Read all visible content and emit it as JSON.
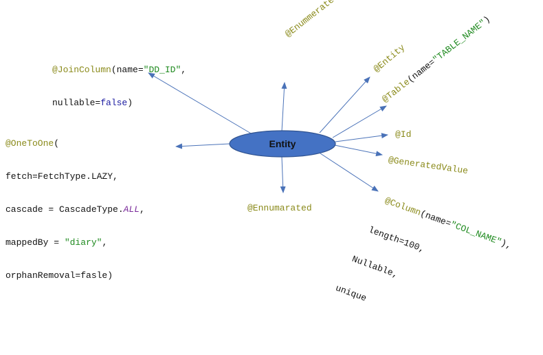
{
  "center": {
    "label": "Entity",
    "fill": "#4472c4",
    "stroke": "#2f528f"
  },
  "arrow_color": "#4a72b8",
  "annotation_color": "#8a8a1a",
  "string_color": "#1f8a1f",
  "keyword_color": "#1a1aa0",
  "joincolumn": {
    "annotation": "@JoinColumn",
    "open": "(name=",
    "value": "\"DD_ID\"",
    "comma": ",",
    "line2_prefix": "nullable=",
    "line2_keyword": "false",
    "line2_suffix": ")"
  },
  "onetoone": {
    "annotation": "@OneToOne",
    "open": "(",
    "line2": "fetch=FetchType.LAZY,",
    "line3_prefix": "cascade = CascadeType.",
    "line3_em": "ALL",
    "line3_suffix": ",",
    "line4_prefix": "mappedBy = ",
    "line4_value": "\"diary\"",
    "line4_suffix": ",",
    "line5": "orphanRemoval=fasle)"
  },
  "enummerated": {
    "annotation": "@Enummerated"
  },
  "entity_ann": {
    "annotation": "@Entity"
  },
  "table": {
    "annotation": "@Table",
    "open": "(name=",
    "value": "\"TABLE_NAME\"",
    "close": ")"
  },
  "id": {
    "annotation": "@Id"
  },
  "generated": {
    "annotation": "@GeneratedValue"
  },
  "column": {
    "annotation": "@Column",
    "open": "(name=",
    "value": "\"COL_NAME\"",
    "close": "),",
    "line2": "length=100,",
    "line3": "Nullable,",
    "line4": "unique"
  },
  "ennumarated": {
    "annotation": "@Ennumarated"
  }
}
